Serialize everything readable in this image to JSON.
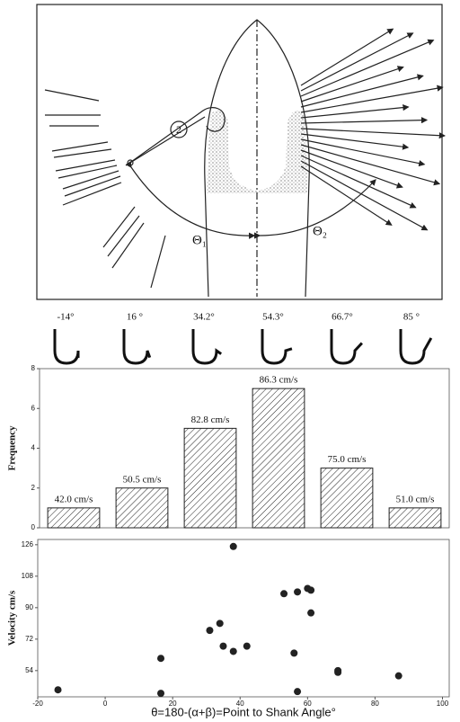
{
  "diagram": {
    "labels": [
      "2",
      "Θ₁",
      "Θ₂"
    ]
  },
  "hooks": {
    "labels": [
      "-14°",
      "16 °",
      "34.2°",
      "54.3°",
      "66.7°",
      "85 °"
    ]
  },
  "chart_data": [
    {
      "type": "bar",
      "ylabel": "Frequency",
      "categories": [
        null,
        null,
        null,
        null,
        null,
        null
      ],
      "values": [
        1,
        2,
        5,
        7,
        3,
        1
      ],
      "annotations": [
        "42.0 cm/s",
        "50.5 cm/s",
        "82.8 cm/s",
        "86.3 cm/s",
        "75.0 cm/s",
        "51.0 cm/s"
      ],
      "ylim": [
        0,
        8
      ],
      "yticks": [
        0,
        2,
        4,
        6,
        8
      ],
      "color": "#222222"
    },
    {
      "type": "scatter",
      "xlabel": "θ=180-(α+β)=Point to Shank Angle°",
      "ylabel": "Velocity cm/s",
      "x": [
        -14,
        16.5,
        16.5,
        31,
        34,
        35,
        38,
        38,
        42,
        53,
        57,
        61,
        60,
        61,
        56,
        57,
        69,
        69,
        87
      ],
      "values": [
        43,
        61,
        41,
        77,
        81,
        68,
        65,
        125,
        68,
        98,
        99,
        100,
        101,
        87,
        64,
        42,
        54,
        53,
        51
      ],
      "xlim": [
        -20,
        102
      ],
      "xticks": [
        -20,
        0,
        20,
        40,
        60,
        80,
        100
      ],
      "ylim": [
        39,
        129
      ],
      "yticks": [
        54,
        72,
        90,
        108,
        126
      ],
      "color": "#222222"
    }
  ]
}
